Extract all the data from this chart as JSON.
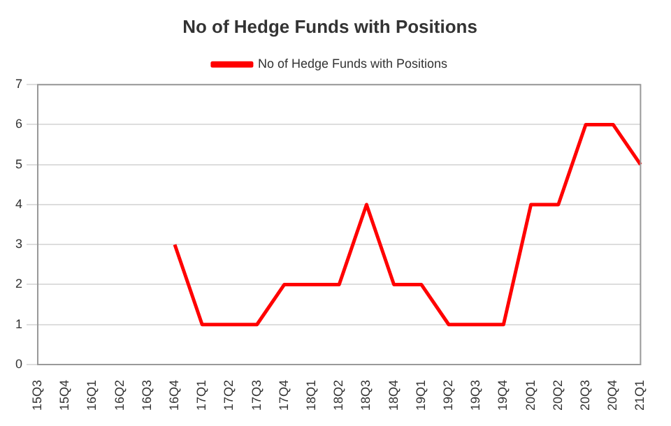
{
  "chart_data": {
    "type": "line",
    "title": "No of Hedge Funds with Positions",
    "categories": [
      "15Q3",
      "15Q4",
      "16Q1",
      "16Q2",
      "16Q3",
      "16Q4",
      "17Q1",
      "17Q2",
      "17Q3",
      "17Q4",
      "18Q1",
      "18Q2",
      "18Q3",
      "18Q4",
      "19Q1",
      "19Q2",
      "19Q3",
      "19Q4",
      "20Q1",
      "20Q2",
      "20Q3",
      "20Q4",
      "21Q1"
    ],
    "series": [
      {
        "name": "No of Hedge Funds with Positions",
        "color": "#ff0000",
        "values": [
          null,
          null,
          null,
          null,
          null,
          3,
          1,
          1,
          1,
          2,
          2,
          2,
          4,
          2,
          2,
          1,
          1,
          1,
          4,
          4,
          6,
          6,
          5
        ]
      }
    ],
    "ylim": [
      0,
      7
    ],
    "yticks": [
      0,
      1,
      2,
      3,
      4,
      5,
      6,
      7
    ],
    "grid": "y",
    "legend": "top",
    "marker": "none",
    "line_style": "solid"
  }
}
